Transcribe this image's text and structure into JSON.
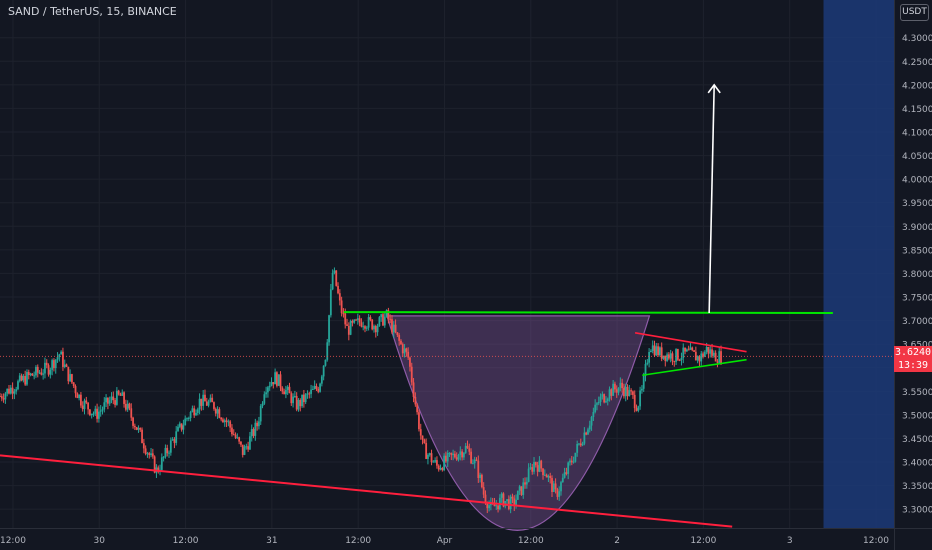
{
  "header": {
    "symbol_line": "SAND / TetherUS, 15, BINANCE"
  },
  "price_axis": {
    "unit_label": "USDT",
    "current_price": "3.6240",
    "countdown": "13:39"
  },
  "colors": {
    "background": "#131722",
    "grid": "#1e222d",
    "up_candle": "#26a69a",
    "down_candle": "#ef5350",
    "resistance_line": "#00e600",
    "trend_line": "#ff1f3d",
    "cup_fill": "#8e5ba8",
    "arrow": "#ffffff",
    "future_zone": "#1c3a78",
    "price_label": "#f23645"
  },
  "chart_data": {
    "type": "candlestick",
    "title": "SAND / TetherUS, 15, BINANCE",
    "ylim": [
      3.26,
      4.38
    ],
    "y_ticks": [
      "4.3000",
      "4.2500",
      "4.2000",
      "4.1500",
      "4.1000",
      "4.0500",
      "4.0000",
      "3.9500",
      "3.9000",
      "3.8500",
      "3.8000",
      "3.7500",
      "3.7000",
      "3.6500",
      "3.6000",
      "3.5500",
      "3.5000",
      "3.4500",
      "3.4000",
      "3.3500",
      "3.3000"
    ],
    "x_ticks": [
      "12:00",
      "30",
      "12:00",
      "31",
      "12:00",
      "Apr",
      "12:00",
      "2",
      "12:00",
      "3",
      "12:00"
    ],
    "x_tick_hours": [
      12,
      24,
      36,
      48,
      60,
      72,
      84,
      96,
      108,
      120,
      132
    ],
    "x_range_hours": [
      10.2,
      134.5
    ],
    "last_price": 3.624,
    "price_path": [
      [
        10.2,
        3.54
      ],
      [
        14.0,
        3.58
      ],
      [
        17.0,
        3.6
      ],
      [
        18.5,
        3.63
      ],
      [
        19.5,
        3.59
      ],
      [
        21.5,
        3.53
      ],
      [
        23.5,
        3.5
      ],
      [
        25.5,
        3.53
      ],
      [
        27.0,
        3.54
      ],
      [
        29.0,
        3.48
      ],
      [
        30.5,
        3.43
      ],
      [
        32.0,
        3.38
      ],
      [
        34.0,
        3.44
      ],
      [
        36.0,
        3.49
      ],
      [
        38.0,
        3.53
      ],
      [
        40.0,
        3.52
      ],
      [
        42.0,
        3.48
      ],
      [
        44.0,
        3.42
      ],
      [
        46.0,
        3.48
      ],
      [
        47.0,
        3.56
      ],
      [
        48.5,
        3.58
      ],
      [
        50.0,
        3.55
      ],
      [
        51.5,
        3.52
      ],
      [
        53.0,
        3.54
      ],
      [
        54.5,
        3.56
      ],
      [
        55.5,
        3.63
      ],
      [
        56.5,
        3.81
      ],
      [
        57.5,
        3.73
      ],
      [
        58.5,
        3.68
      ],
      [
        60.5,
        3.7
      ],
      [
        62.5,
        3.69
      ],
      [
        64.0,
        3.71
      ],
      [
        65.5,
        3.66
      ],
      [
        67.0,
        3.62
      ],
      [
        68.0,
        3.52
      ],
      [
        69.0,
        3.43
      ],
      [
        71.0,
        3.39
      ],
      [
        73.0,
        3.41
      ],
      [
        75.0,
        3.43
      ],
      [
        76.5,
        3.39
      ],
      [
        77.5,
        3.33
      ],
      [
        78.5,
        3.3
      ],
      [
        80.0,
        3.32
      ],
      [
        81.5,
        3.31
      ],
      [
        83.0,
        3.35
      ],
      [
        84.5,
        3.4
      ],
      [
        86.0,
        3.38
      ],
      [
        87.5,
        3.33
      ],
      [
        89.0,
        3.38
      ],
      [
        90.5,
        3.43
      ],
      [
        92.0,
        3.48
      ],
      [
        93.5,
        3.53
      ],
      [
        95.0,
        3.55
      ],
      [
        96.5,
        3.56
      ],
      [
        98.0,
        3.54
      ],
      [
        98.8,
        3.52
      ],
      [
        99.5,
        3.55
      ],
      [
        100.5,
        3.65
      ],
      [
        102.0,
        3.63
      ],
      [
        104.0,
        3.625
      ],
      [
        106.0,
        3.63
      ],
      [
        107.5,
        3.62
      ],
      [
        108.5,
        3.64
      ],
      [
        109.5,
        3.625
      ],
      [
        110.5,
        3.624
      ]
    ],
    "drawings": {
      "resistance": {
        "from": [
          58.0,
          3.718
        ],
        "to": [
          126.0,
          3.716
        ],
        "color": "green"
      },
      "lower_trendline": {
        "from": [
          10.2,
          3.414
        ],
        "to": [
          112.0,
          3.263
        ],
        "color": "red"
      },
      "triangle_upper": {
        "from": [
          98.5,
          3.674
        ],
        "to": [
          114.0,
          3.634
        ],
        "color": "red"
      },
      "triangle_lower": {
        "from": [
          99.5,
          3.584
        ],
        "to": [
          114.0,
          3.617
        ],
        "color": "green"
      },
      "cup": {
        "left": [
          64.0,
          3.71
        ],
        "bottom": [
          82.0,
          3.255
        ],
        "right": [
          100.5,
          3.71
        ]
      },
      "arrow": {
        "from": [
          108.8,
          3.716
        ],
        "to": [
          109.5,
          4.2
        ],
        "color": "white"
      },
      "future_zone_start_hours": 124.7
    }
  }
}
